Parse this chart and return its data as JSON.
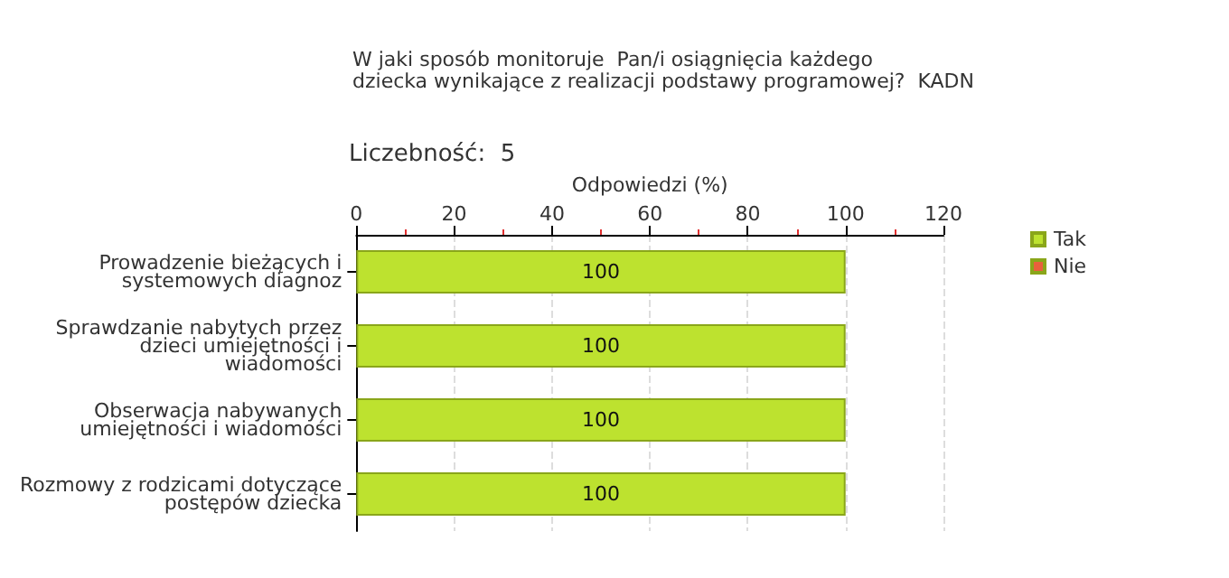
{
  "chart_data": {
    "type": "bar",
    "orientation": "horizontal",
    "stacked": true,
    "title": "W jaki sposób monitoruje  Pan/i osiągnięcia każdego\ndziecka wynikające z realizacji podstawy programowej?  KADN",
    "subtitle": "Liczebność:  5",
    "xlabel": "Odpowiedzi (%)",
    "categories": [
      "Prowadzenie bieżących i\nsystemowych diagnoz",
      "Sprawdzanie nabytych przez\ndzieci umiejętności i\nwiadomości",
      "Obserwacja nabywanych\numiejętności i wiadomości",
      "Rozmowy z rodzicami dotyczące\npostępów dziecka"
    ],
    "series": [
      {
        "name": "Tak",
        "color": "#bde22f",
        "values": [
          100,
          100,
          100,
          100
        ],
        "value_labels": [
          "100",
          "100",
          "100",
          "100"
        ]
      },
      {
        "name": "Nie",
        "color": "#e8603c",
        "values": [
          0,
          0,
          0,
          0
        ]
      }
    ],
    "xlim": [
      0,
      120
    ],
    "xticks": [
      0,
      {
        "value": 10,
        "label": null
      },
      20,
      {
        "value": 30,
        "label": null
      },
      40,
      {
        "value": 50,
        "label": null
      },
      60,
      {
        "value": 70,
        "label": null
      },
      80,
      {
        "value": 90,
        "label": null
      },
      100,
      {
        "value": 110,
        "label": null
      },
      120
    ],
    "grid": "x",
    "legend": "top right"
  }
}
